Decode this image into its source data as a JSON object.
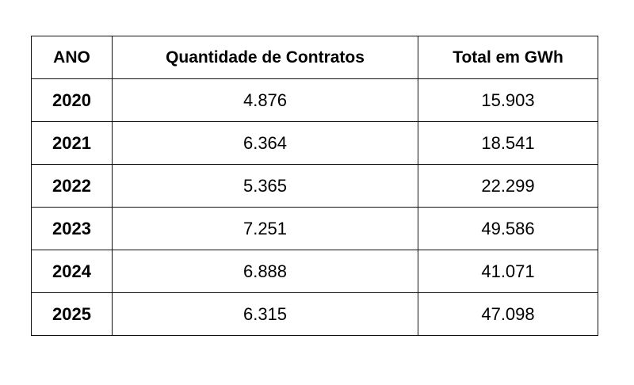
{
  "chart_data": {
    "type": "table",
    "columns": [
      "ANO",
      "Quantidade de Contratos",
      "Total em GWh"
    ],
    "rows": [
      [
        "2020",
        "4.876",
        "15.903"
      ],
      [
        "2021",
        "6.364",
        "18.541"
      ],
      [
        "2022",
        "5.365",
        "22.299"
      ],
      [
        "2023",
        "7.251",
        "49.586"
      ],
      [
        "2024",
        "6.888",
        "41.071"
      ],
      [
        "2025",
        "6.315",
        "47.098"
      ]
    ],
    "series": [
      {
        "name": "Quantidade de Contratos",
        "values": [
          4876,
          6364,
          5365,
          7251,
          6888,
          6315
        ]
      },
      {
        "name": "Total em GWh",
        "values": [
          15903,
          18541,
          22299,
          49586,
          41071,
          47098
        ]
      }
    ],
    "categories": [
      "2020",
      "2021",
      "2022",
      "2023",
      "2024",
      "2025"
    ]
  }
}
